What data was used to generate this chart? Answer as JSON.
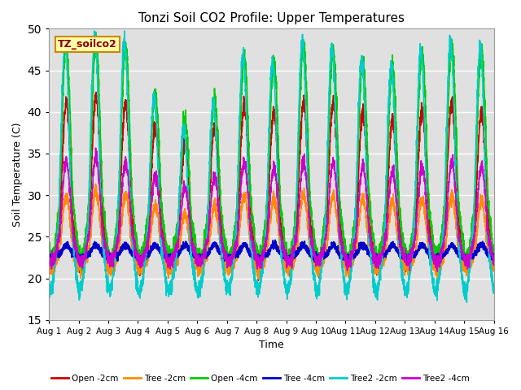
{
  "title": "Tonzi Soil CO2 Profile: Upper Temperatures",
  "xlabel": "Time",
  "ylabel": "Soil Temperature (C)",
  "ylim": [
    15,
    50
  ],
  "xlim": [
    0,
    360
  ],
  "background_color": "#ffffff",
  "plot_bg_color": "#e0e0e0",
  "grid_color": "#ffffff",
  "legend_label": "TZ_soilco2",
  "series_names": [
    "Open -2cm",
    "Tree -2cm",
    "Open -4cm",
    "Tree -4cm",
    "Tree2 -2cm",
    "Tree2 -4cm"
  ],
  "series_colors": [
    "#cc0000",
    "#ff8c00",
    "#00cc00",
    "#0000cc",
    "#00cccc",
    "#cc00cc"
  ],
  "series_lw": [
    1.2,
    1.2,
    1.2,
    1.5,
    1.2,
    1.2
  ],
  "xtick_labels": [
    "Aug 1",
    "Aug 2",
    "Aug 3",
    "Aug 4",
    "Aug 5",
    "Aug 6",
    "Aug 7",
    "Aug 8",
    "Aug 9",
    "Aug 10",
    "Aug 11",
    "Aug 12",
    "Aug 13",
    "Aug 14",
    "Aug 15",
    "Aug 16"
  ],
  "xtick_positions": [
    0,
    24,
    48,
    72,
    96,
    120,
    144,
    168,
    192,
    216,
    240,
    264,
    288,
    312,
    336,
    360
  ],
  "n_points": 3600,
  "T": 24,
  "params": {
    "Open -2cm": {
      "base": 21.5,
      "amp_day": 19.5,
      "amp_night": 0.0,
      "phase_hr": 14,
      "noise": 0.5
    },
    "Tree -2cm": {
      "base": 21.0,
      "amp_day": 9.0,
      "amp_night": 0.0,
      "phase_hr": 14,
      "noise": 0.4
    },
    "Open -4cm": {
      "base": 22.5,
      "amp_day": 25.5,
      "amp_night": 0.0,
      "phase_hr": 14,
      "noise": 0.5
    },
    "Tree -4cm": {
      "base": 22.5,
      "amp_day": 1.5,
      "amp_night": 0.0,
      "phase_hr": 14,
      "noise": 0.2
    },
    "Tree2 -2cm": {
      "base": 18.5,
      "amp_day": 30.0,
      "amp_night": 0.0,
      "phase_hr": 13,
      "noise": 0.5
    },
    "Tree2 -4cm": {
      "base": 22.0,
      "amp_day": 12.0,
      "amp_night": 0.0,
      "phase_hr": 14,
      "noise": 0.4
    }
  },
  "amp_variations": {
    "Open -2cm": [
      1.0,
      1.05,
      1.0,
      0.85,
      0.75,
      0.85,
      1.0,
      0.95,
      1.0,
      1.0,
      0.95,
      0.9,
      0.95,
      1.0,
      0.95
    ],
    "Tree -2cm": [
      1.0,
      1.05,
      1.0,
      0.85,
      0.75,
      0.85,
      1.0,
      0.95,
      1.0,
      1.0,
      0.95,
      0.9,
      0.95,
      1.0,
      0.95
    ],
    "Open -4cm": [
      1.0,
      1.02,
      1.0,
      0.78,
      0.65,
      0.75,
      0.95,
      0.92,
      1.0,
      0.98,
      0.93,
      0.9,
      0.97,
      1.0,
      0.98
    ],
    "Tree -4cm": [
      1.0,
      1.0,
      1.0,
      1.0,
      1.0,
      1.0,
      1.0,
      1.0,
      1.0,
      1.0,
      1.0,
      1.0,
      1.0,
      1.0,
      1.0
    ],
    "Tree2 -2cm": [
      1.0,
      1.02,
      1.0,
      0.78,
      0.65,
      0.75,
      0.95,
      0.92,
      1.0,
      0.98,
      0.93,
      0.9,
      0.97,
      1.0,
      0.98
    ],
    "Tree2 -4cm": [
      1.0,
      1.05,
      1.0,
      0.85,
      0.75,
      0.85,
      1.0,
      0.95,
      1.0,
      1.0,
      0.95,
      0.9,
      0.95,
      1.0,
      0.95
    ]
  }
}
